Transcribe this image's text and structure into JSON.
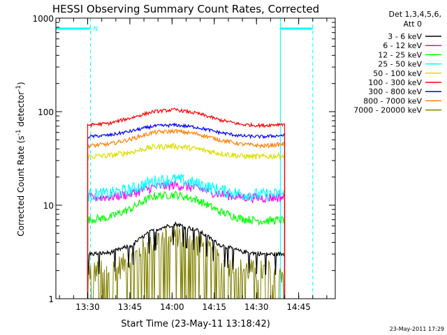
{
  "chart_data": {
    "type": "line",
    "title": "HESSI Observing Summary Count Rates, Corrected",
    "xlabel": "Start Time (23-May-11 13:18:42)",
    "ylabel_main": "Corrected Count Rate (s",
    "ylabel_sup1": "-1",
    "ylabel_mid": " detector",
    "ylabel_sup2": "-1",
    "ylabel_end": ")",
    "y_scale": "log",
    "ylim": [
      1,
      1000
    ],
    "xlim": [
      "13:18:42",
      "14:58:00"
    ],
    "x_ticks": [
      "13:30",
      "13:45",
      "14:00",
      "14:15",
      "14:30",
      "14:45"
    ],
    "y_ticks": [
      "1",
      "10",
      "100",
      "1000"
    ],
    "legend_header": [
      "Det 1,3,4,5,6,",
      "Att 0"
    ],
    "legend_position": "right",
    "series": [
      {
        "name": "3 - 6 keV",
        "color": "#000000",
        "profile": [
          3.0,
          3.1,
          3.7,
          5.4,
          6.3,
          5.4,
          3.8,
          3.2,
          3.0,
          3.0
        ]
      },
      {
        "name": "6 - 12 keV",
        "color": "#ff00ff",
        "profile": [
          12.0,
          12.3,
          13.3,
          15.6,
          16.5,
          15.2,
          13.2,
          12.3,
          12.0,
          12.2
        ]
      },
      {
        "name": "12 - 25 keV",
        "color": "#00ff00",
        "profile": [
          7.0,
          7.4,
          9.2,
          12.5,
          13.0,
          11.4,
          8.6,
          7.2,
          6.8,
          7.0
        ]
      },
      {
        "name": "25 - 50 keV",
        "color": "#00ffff",
        "profile": [
          13.0,
          13.4,
          14.8,
          18.0,
          19.0,
          17.0,
          14.6,
          13.2,
          13.0,
          13.2
        ]
      },
      {
        "name": "50 - 100 keV",
        "color": "#dddd00",
        "profile": [
          33.0,
          34.0,
          37.0,
          42.0,
          43.0,
          40.0,
          36.0,
          33.5,
          33.0,
          34.0
        ]
      },
      {
        "name": "100 - 300 keV",
        "color": "#ff0000",
        "profile": [
          72.0,
          75.0,
          86.0,
          100.0,
          105.0,
          96.0,
          82.0,
          73.0,
          71.0,
          74.0
        ]
      },
      {
        "name": "300 - 800 keV",
        "color": "#0000ff",
        "profile": [
          54.0,
          56.0,
          62.0,
          70.0,
          72.0,
          68.0,
          60.0,
          55.0,
          54.0,
          56.0
        ]
      },
      {
        "name": "800 - 7000 keV",
        "color": "#ff8000",
        "profile": [
          43.0,
          45.0,
          51.0,
          60.0,
          62.0,
          58.0,
          50.0,
          45.0,
          43.0,
          45.0
        ]
      },
      {
        "name": "7000 - 20000 keV",
        "color": "#808000",
        "profile": [
          2.0,
          2.0,
          2.6,
          4.2,
          5.2,
          4.0,
          2.6,
          2.1,
          2.0,
          2.0
        ]
      }
    ],
    "series_time_range": [
      "13:30:00",
      "14:40:00"
    ],
    "annotations": {
      "saa_label": "N",
      "saa_color": "#00ffff",
      "night_bars": [
        [
          "13:18:42",
          "13:31:00"
        ],
        [
          "14:38:30",
          "14:50:00"
        ]
      ]
    }
  },
  "footer": {
    "timestamp": "23-May-2011 17:29"
  }
}
